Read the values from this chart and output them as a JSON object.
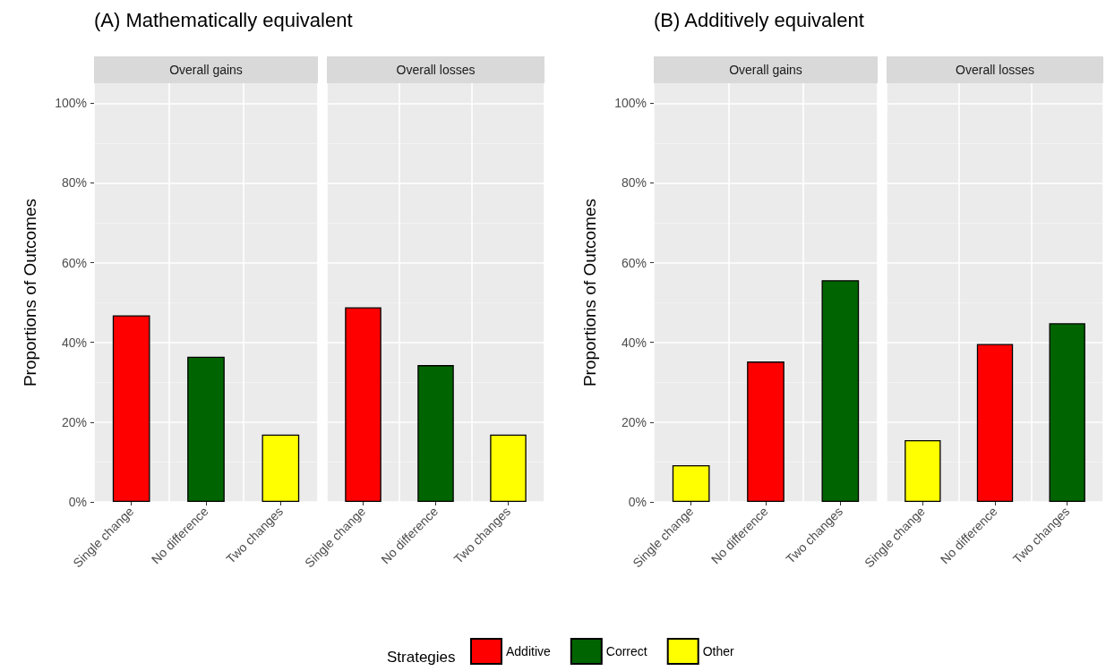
{
  "chart_data": [
    {
      "type": "bar",
      "title": "(A) Mathematically equivalent",
      "subtitle": "Overall gains",
      "ylabel": "Proportions of Outcomes",
      "categories": [
        "Single change",
        "No difference",
        "Two changes"
      ],
      "stacked": true,
      "ylim": [
        0,
        105
      ],
      "yticks": [
        {
          "value": 0,
          "label": "0%"
        },
        {
          "value": 20,
          "label": "20%"
        },
        {
          "value": 40,
          "label": "40%"
        },
        {
          "value": 60,
          "label": "60%"
        },
        {
          "value": 80,
          "label": "80%"
        },
        {
          "value": 100,
          "label": "100%"
        }
      ],
      "grid": true,
      "legend": "bottom",
      "legend_title": "Strategies",
      "series": [
        {
          "name": "Additive",
          "color": "#ff0000",
          "values": [
            46.8,
            null,
            null
          ]
        },
        {
          "name": "Correct",
          "color": "#006400",
          "values": [
            null,
            36.4,
            null
          ]
        },
        {
          "name": "Other",
          "color": "#ffff00",
          "values": [
            null,
            null,
            16.9
          ]
        }
      ]
    },
    {
      "type": "bar",
      "subtitle": "Overall losses",
      "categories": [
        "Single change",
        "No difference",
        "Two changes"
      ],
      "stacked": true,
      "ylim": [
        0,
        105
      ],
      "yticks": [
        0,
        20,
        40,
        60,
        80,
        100
      ],
      "grid": true,
      "tick_labels": "x",
      "series": [
        {
          "color": "#ff0000",
          "values": [
            48.8,
            null,
            null
          ]
        },
        {
          "color": "#006400",
          "values": [
            null,
            34.3,
            null
          ]
        },
        {
          "color": "#ffff00",
          "values": [
            null,
            null,
            16.9
          ]
        }
      ]
    },
    {
      "type": "bar",
      "title": "(B) Additively equivalent",
      "subtitle": "Overall gains",
      "ylabel": "Proportions of Outcomes",
      "categories": [
        "Single change",
        "No difference",
        "Two changes"
      ],
      "stacked": true,
      "ylim": [
        0,
        105
      ],
      "yticks": [
        {
          "value": 0,
          "label": "0%"
        },
        {
          "value": 20,
          "label": "20%"
        },
        {
          "value": 40,
          "label": "40%"
        },
        {
          "value": 60,
          "label": "60%"
        },
        {
          "value": 80,
          "label": "80%"
        },
        {
          "value": 100,
          "label": "100%"
        }
      ],
      "grid": true,
      "series": [
        {
          "color": "#ff0000",
          "values": [
            null,
            35.2,
            null
          ]
        },
        {
          "color": "#006400",
          "values": [
            null,
            null,
            55.6
          ]
        },
        {
          "color": "#ffff00",
          "values": [
            9.2,
            null,
            null
          ]
        }
      ]
    },
    {
      "type": "bar",
      "subtitle": "Overall losses",
      "categories": [
        "Single change",
        "No difference",
        "Two changes"
      ],
      "stacked": true,
      "ylim": [
        0,
        105
      ],
      "yticks": [
        0,
        20,
        40,
        60,
        80,
        100
      ],
      "grid": true,
      "tick_labels": "x",
      "series": [
        {
          "color": "#ff0000",
          "values": [
            null,
            39.6,
            null
          ]
        },
        {
          "color": "#006400",
          "values": [
            null,
            null,
            44.8
          ]
        },
        {
          "color": "#ffff00",
          "values": [
            15.5,
            null,
            null
          ]
        }
      ]
    }
  ]
}
